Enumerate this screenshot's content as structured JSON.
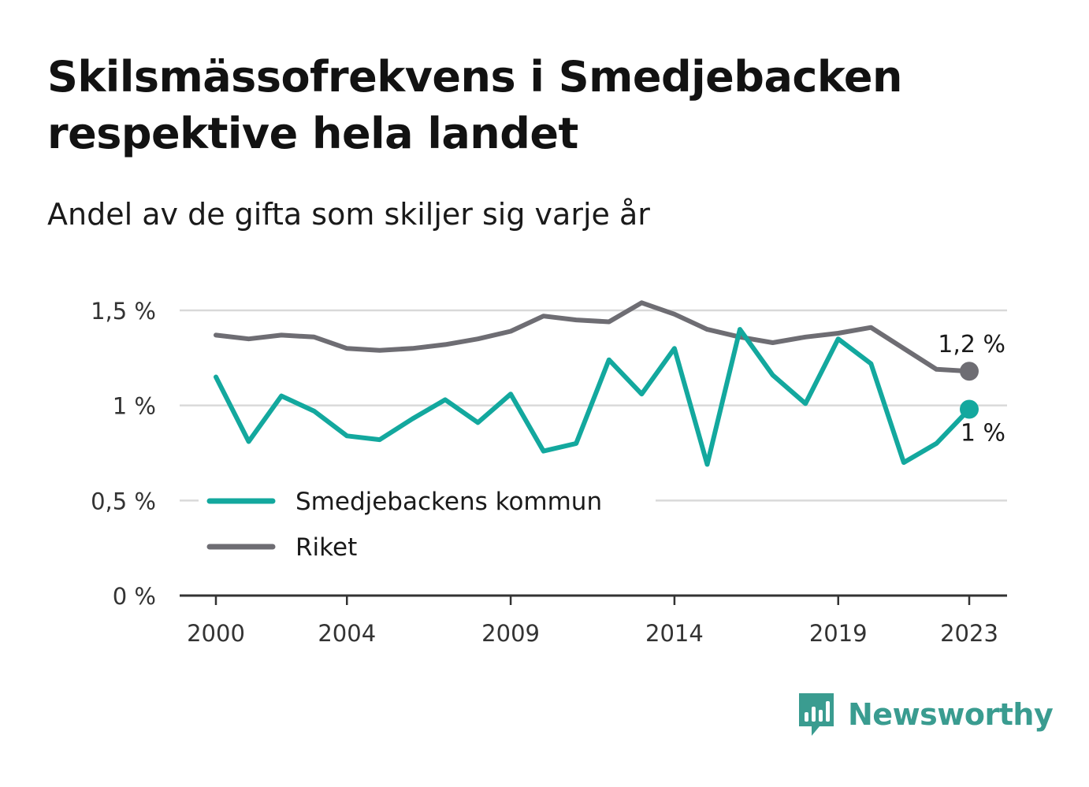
{
  "title": "Skilsmässofrekvens i Smedjebacken respektive hela landet",
  "subtitle": "Andel av de gifta som skiljer sig varje år",
  "brand": {
    "name": "Newsworthy",
    "icon": "bar-chart-speech-bubble-icon",
    "color": "#3a9c90"
  },
  "chart_data": {
    "type": "line",
    "x": [
      2000,
      2001,
      2002,
      2003,
      2004,
      2005,
      2006,
      2007,
      2008,
      2009,
      2010,
      2011,
      2012,
      2013,
      2014,
      2015,
      2016,
      2017,
      2018,
      2019,
      2020,
      2021,
      2022,
      2023
    ],
    "x_ticks": [
      2000,
      2004,
      2009,
      2014,
      2019,
      2023
    ],
    "x_tick_labels": [
      "2000",
      "2004",
      "2009",
      "2014",
      "2019",
      "2023"
    ],
    "ylim": [
      0,
      1.5
    ],
    "y_ticks": [
      0,
      0.5,
      1,
      1.5
    ],
    "y_tick_labels": [
      "0 %",
      "0,5 %",
      "1 %",
      "1,5 %"
    ],
    "grid": true,
    "legend_placement": "bottom-left",
    "series": [
      {
        "name": "Smedjebackens kommun",
        "color": "#13a89e",
        "values": [
          1.15,
          0.81,
          1.05,
          0.97,
          0.84,
          0.82,
          0.93,
          1.03,
          0.91,
          1.06,
          0.76,
          0.8,
          1.24,
          1.06,
          1.3,
          0.69,
          1.4,
          1.16,
          1.01,
          1.35,
          1.22,
          0.7,
          0.8,
          0.98
        ],
        "end_label": "1 %"
      },
      {
        "name": "Riket",
        "color": "#6e6d73",
        "values": [
          1.37,
          1.35,
          1.37,
          1.36,
          1.3,
          1.29,
          1.3,
          1.32,
          1.35,
          1.39,
          1.47,
          1.45,
          1.44,
          1.54,
          1.48,
          1.4,
          1.36,
          1.33,
          1.36,
          1.38,
          1.41,
          1.3,
          1.19,
          1.18
        ],
        "end_label": "1,2 %"
      }
    ]
  }
}
